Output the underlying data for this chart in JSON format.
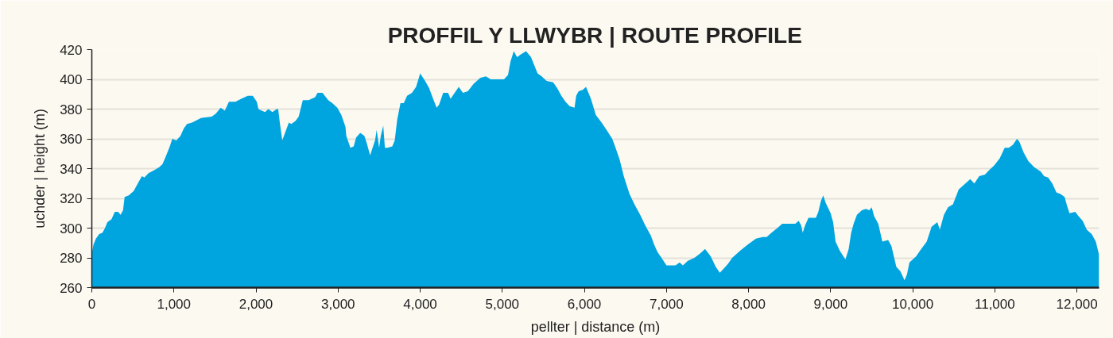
{
  "chart_data": {
    "type": "area",
    "title": "PROFFIL Y LLWYBR | ROUTE PROFILE",
    "xlabel": "pellter | distance (m)",
    "ylabel": "uchder | height (m)",
    "color": "#00a5e0",
    "x": [
      0,
      20,
      50,
      90,
      130,
      160,
      190,
      240,
      280,
      320,
      350,
      380,
      400,
      450,
      510,
      560,
      610,
      640,
      690,
      760,
      820,
      860,
      900,
      950,
      980,
      1030,
      1080,
      1120,
      1160,
      1220,
      1330,
      1460,
      1510,
      1570,
      1620,
      1670,
      1750,
      1820,
      1900,
      1960,
      2010,
      2030,
      2070,
      2110,
      2150,
      2200,
      2250,
      2270,
      2290,
      2320,
      2340,
      2400,
      2430,
      2480,
      2520,
      2570,
      2640,
      2720,
      2750,
      2810,
      2880,
      2930,
      2990,
      3040,
      3090,
      3100,
      3150,
      3190,
      3220,
      3270,
      3320,
      3350,
      3390,
      3420,
      3450,
      3470,
      3500,
      3520,
      3550,
      3570,
      3600,
      3660,
      3690,
      3720,
      3760,
      3800,
      3840,
      3900,
      3950,
      4000,
      4060,
      4110,
      4150,
      4200,
      4230,
      4280,
      4340,
      4370,
      4420,
      4470,
      4520,
      4580,
      4650,
      4730,
      4800,
      4860,
      5020,
      5070,
      5100,
      5140,
      5180,
      5230,
      5290,
      5350,
      5430,
      5480,
      5540,
      5620,
      5670,
      5720,
      5770,
      5820,
      5880,
      5900,
      5930,
      5980,
      6020,
      6080,
      6140,
      6210,
      6270,
      6340,
      6380,
      6430,
      6480,
      6550,
      6610,
      6680,
      6740,
      6810,
      6850,
      6890,
      6940,
      7000,
      7110,
      7160,
      7200,
      7260,
      7340,
      7410,
      7470,
      7540,
      7600,
      7650,
      7700,
      7750,
      7800,
      7900,
      7990,
      8090,
      8170,
      8220,
      8280,
      8350,
      8410,
      8480,
      8570,
      8610,
      8640,
      8660,
      8690,
      8730,
      8820,
      8850,
      8880,
      8910,
      8940,
      9000,
      9030,
      9060,
      9110,
      9180,
      9220,
      9250,
      9280,
      9320,
      9380,
      9430,
      9470,
      9500,
      9530,
      9580,
      9630,
      9700,
      9740,
      9800,
      9850,
      9900,
      9930,
      9960,
      10040,
      10090,
      10170,
      10230,
      10300,
      10330,
      10380,
      10430,
      10490,
      10560,
      10620,
      10700,
      10750,
      10810,
      10880,
      10930,
      10990,
      11060,
      11120,
      11170,
      11220,
      11270,
      11300,
      11350,
      11410,
      11480,
      11560,
      11600,
      11650,
      11700,
      11750,
      11800,
      11850,
      11880,
      11910,
      11980,
      12020,
      12070,
      12120,
      12180,
      12230,
      12270
    ],
    "values": [
      283,
      289,
      293,
      296,
      297,
      300,
      304,
      306,
      311,
      311,
      309,
      312,
      321,
      322,
      325,
      330,
      335,
      334,
      337,
      339,
      341,
      343,
      348,
      355,
      360,
      359,
      362,
      367,
      370,
      371,
      374,
      375,
      377,
      381,
      379,
      385,
      385,
      387,
      389,
      389,
      385,
      380,
      379,
      378,
      380,
      378,
      380,
      380,
      371,
      359,
      362,
      371,
      370,
      372,
      375,
      386,
      386,
      388,
      391,
      391,
      386,
      384,
      381,
      376,
      368,
      362,
      354,
      355,
      361,
      364,
      362,
      357,
      349,
      354,
      359,
      366,
      354,
      362,
      369,
      354,
      354,
      355,
      359,
      373,
      384,
      384,
      389,
      391,
      395,
      404,
      399,
      394,
      388,
      381,
      383,
      391,
      391,
      387,
      391,
      395,
      391,
      392,
      397,
      401,
      402,
      400,
      400,
      403,
      412,
      419,
      415,
      417,
      419,
      415,
      404,
      402,
      399,
      398,
      394,
      389,
      385,
      382,
      381,
      389,
      392,
      393,
      395,
      387,
      376,
      371,
      366,
      360,
      354,
      346,
      335,
      323,
      316,
      309,
      302,
      295,
      289,
      284,
      280,
      275,
      275,
      277,
      275,
      278,
      280,
      283,
      286,
      281,
      274,
      270,
      273,
      276,
      280,
      285,
      289,
      293,
      294,
      294,
      297,
      300,
      303,
      303,
      303,
      305,
      302,
      297,
      302,
      307,
      307,
      311,
      318,
      322,
      317,
      310,
      304,
      291,
      285,
      279,
      286,
      297,
      303,
      309,
      312,
      313,
      312,
      314,
      308,
      303,
      291,
      292,
      288,
      274,
      271,
      265,
      269,
      277,
      281,
      285,
      291,
      301,
      304,
      299,
      309,
      314,
      316,
      326,
      329,
      333,
      330,
      335,
      336,
      339,
      342,
      347,
      354,
      354,
      356,
      360,
      358,
      351,
      345,
      341,
      338,
      335,
      334,
      330,
      324,
      323,
      321,
      315,
      310,
      311,
      308,
      305,
      299,
      296,
      291,
      282
    ],
    "xlim": [
      0,
      12270
    ],
    "ylim": [
      260,
      420
    ],
    "xticks": [
      0,
      {
        "value": 1000,
        "label": "1,000"
      },
      {
        "value": 2000,
        "label": "2,000"
      },
      {
        "value": 3000,
        "label": "3,000"
      },
      {
        "value": 4000,
        "label": "4,000"
      },
      {
        "value": 5000,
        "label": "5,000"
      },
      {
        "value": 6000,
        "label": "6,000"
      },
      {
        "value": 7000,
        "label": "7,000"
      },
      {
        "value": 8000,
        "label": "8,000"
      },
      {
        "value": 9000,
        "label": "9,000"
      },
      {
        "value": 10000,
        "label": "10,000"
      },
      {
        "value": 11000,
        "label": "11,000"
      },
      {
        "value": 12000,
        "label": "12,000"
      }
    ],
    "yticks": [
      260,
      280,
      300,
      320,
      340,
      360,
      380,
      400,
      420
    ],
    "grid": "y"
  }
}
